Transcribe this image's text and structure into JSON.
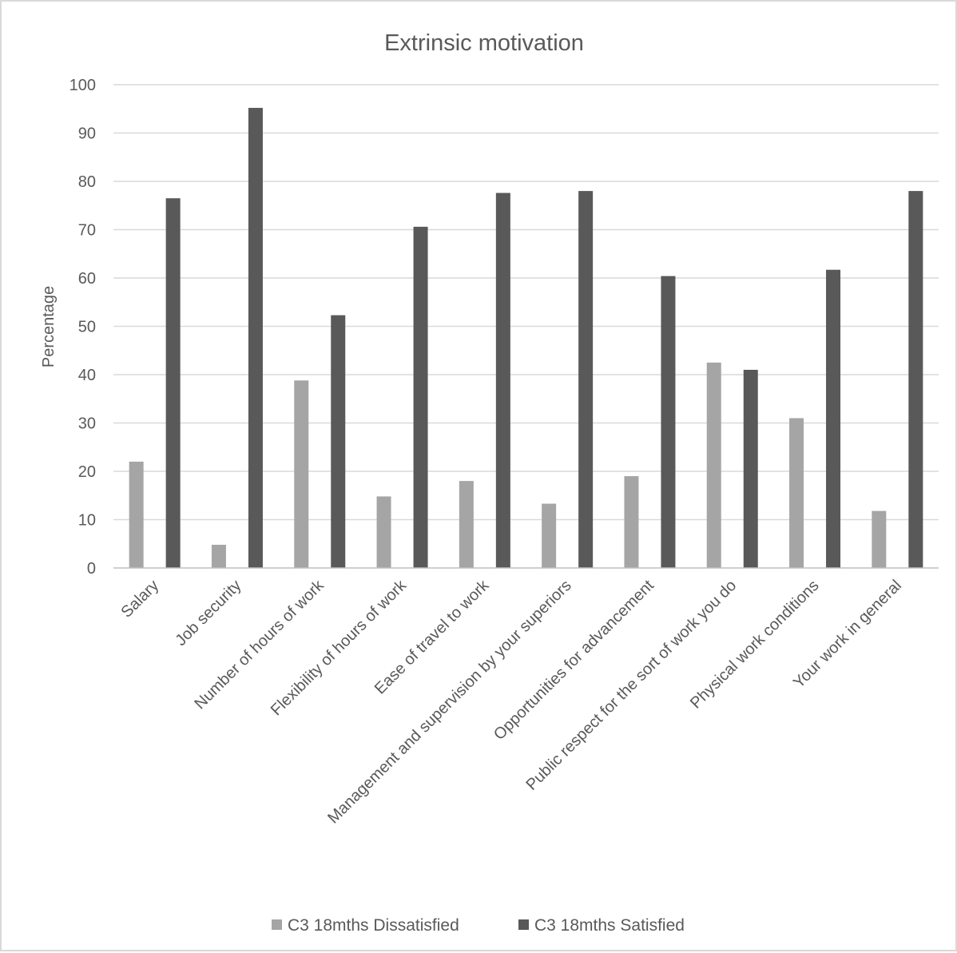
{
  "chart_data": {
    "type": "bar",
    "title": "Extrinsic motivation",
    "xlabel": "",
    "ylabel": "Percentage",
    "ylim": [
      0,
      100
    ],
    "yticks": [
      0,
      10,
      20,
      30,
      40,
      50,
      60,
      70,
      80,
      90,
      100
    ],
    "grid": true,
    "legend_position": "bottom",
    "categories": [
      "Salary",
      "Job security",
      "Number of hours of work",
      "Flexibility of hours of work",
      "Ease of travel to work",
      "Management and supervision by your superiors",
      "Opportunities for advancement",
      "Public respect for the sort of work you do",
      "Physical work conditions",
      "Your work in general"
    ],
    "series": [
      {
        "name": "C3 18mths Dissatisfied",
        "color": "#a5a5a5",
        "values": [
          22,
          4.8,
          38.8,
          14.8,
          18,
          13.3,
          19,
          42.5,
          31,
          11.8
        ]
      },
      {
        "name": "C3 18mths Satisfied",
        "color": "#595959",
        "values": [
          76.5,
          95.2,
          52.3,
          70.6,
          77.6,
          78,
          60.4,
          41,
          61.7,
          78
        ]
      }
    ]
  }
}
